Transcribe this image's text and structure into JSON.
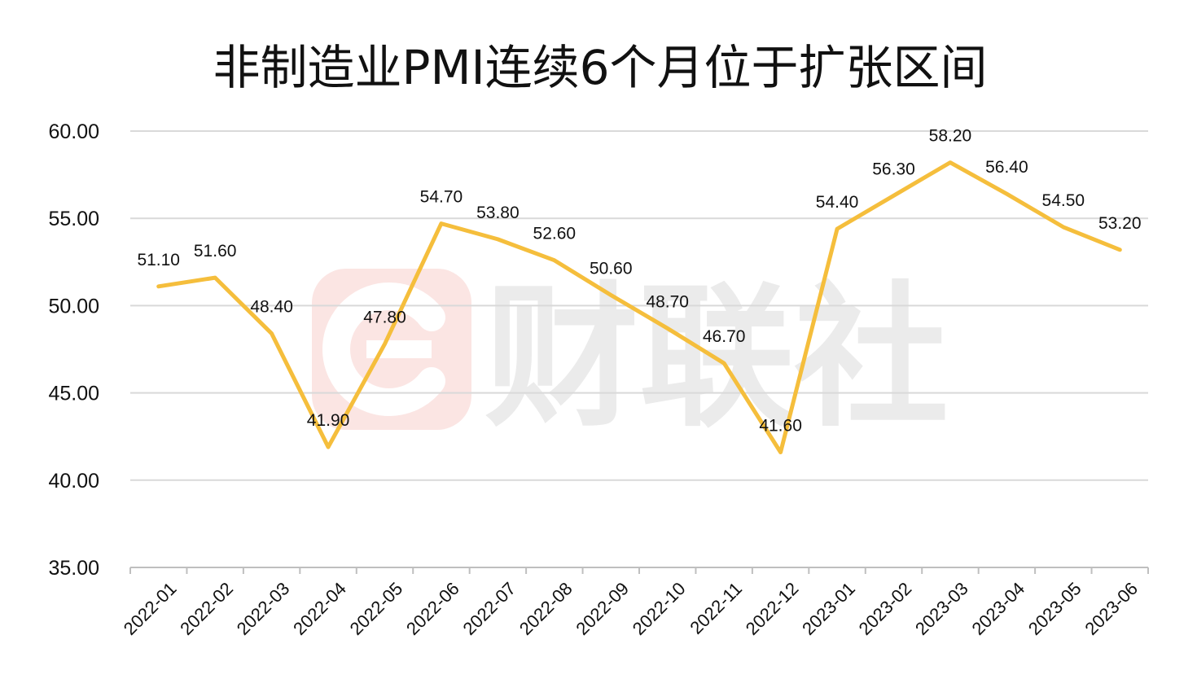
{
  "colors": {
    "line": "#F5BE3C",
    "grid": "#d9d9d9",
    "axis": "#bfbfbf",
    "watermark_red": "#fbe5e3",
    "watermark_gray": "#ebebeb"
  },
  "watermark": {
    "text": "财联社"
  },
  "chart_data": {
    "type": "line",
    "title": "非制造业PMI连续6个月位于扩张区间",
    "xlabel": "",
    "ylabel": "",
    "ylim": [
      35,
      60
    ],
    "yticks": [
      "35.00",
      "40.00",
      "45.00",
      "50.00",
      "55.00",
      "60.00"
    ],
    "grid": true,
    "categories": [
      "2022-01",
      "2022-02",
      "2022-03",
      "2022-04",
      "2022-05",
      "2022-06",
      "2022-07",
      "2022-08",
      "2022-09",
      "2022-10",
      "2022-11",
      "2022-12",
      "2023-01",
      "2023-02",
      "2023-03",
      "2023-04",
      "2023-05",
      "2023-06"
    ],
    "series": [
      {
        "name": "非制造业PMI",
        "values": [
          51.1,
          51.6,
          48.4,
          41.9,
          47.8,
          54.7,
          53.8,
          52.6,
          50.6,
          48.7,
          46.7,
          41.6,
          54.4,
          56.3,
          58.2,
          56.4,
          54.5,
          53.2
        ],
        "labels": [
          "51.10",
          "51.60",
          "48.40",
          "41.90",
          "47.80",
          "54.70",
          "53.80",
          "52.60",
          "50.60",
          "48.70",
          "46.70",
          "41.60",
          "54.40",
          "56.30",
          "58.20",
          "56.40",
          "54.50",
          "53.20"
        ]
      }
    ]
  }
}
